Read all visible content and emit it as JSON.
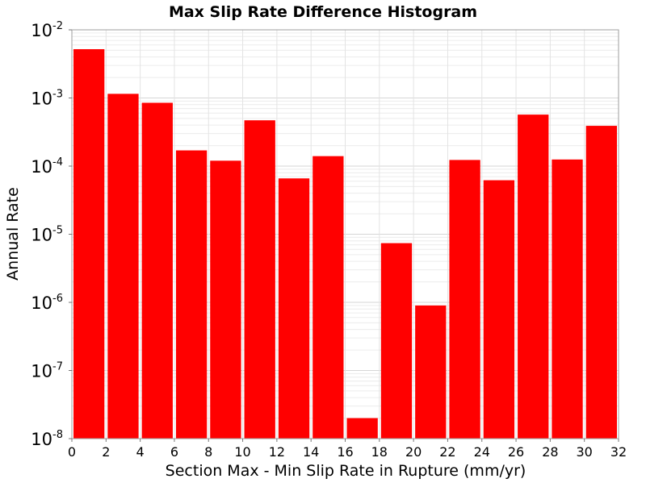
{
  "chart_data": {
    "type": "bar",
    "title": "Max Slip Rate Difference Histogram",
    "xlabel": "Section Max - Min Slip Rate in Rupture (mm/yr)",
    "ylabel": "Annual Rate",
    "xlim": [
      0,
      32
    ],
    "ylim": [
      1e-08,
      0.01
    ],
    "yscale": "log",
    "grid": true,
    "bar_color": "#ff0000",
    "x_ticks": [
      "0",
      "2",
      "4",
      "6",
      "8",
      "10",
      "12",
      "14",
      "16",
      "18",
      "20",
      "22",
      "24",
      "26",
      "28",
      "30",
      "32"
    ],
    "y_ticks": [
      {
        "base": "10",
        "exp": "-8"
      },
      {
        "base": "10",
        "exp": "-7"
      },
      {
        "base": "10",
        "exp": "-6"
      },
      {
        "base": "10",
        "exp": "-5"
      },
      {
        "base": "10",
        "exp": "-4"
      },
      {
        "base": "10",
        "exp": "-3"
      },
      {
        "base": "10",
        "exp": "-2"
      }
    ],
    "bins": [
      {
        "x0": 0,
        "x1": 2,
        "value": 0.0052
      },
      {
        "x0": 2,
        "x1": 4,
        "value": 0.00115
      },
      {
        "x0": 4,
        "x1": 6,
        "value": 0.00085
      },
      {
        "x0": 6,
        "x1": 8,
        "value": 0.00017
      },
      {
        "x0": 8,
        "x1": 10,
        "value": 0.00012
      },
      {
        "x0": 10,
        "x1": 12,
        "value": 0.00047
      },
      {
        "x0": 12,
        "x1": 14,
        "value": 6.6e-05
      },
      {
        "x0": 14,
        "x1": 16,
        "value": 0.00014
      },
      {
        "x0": 16,
        "x1": 18,
        "value": 2e-08
      },
      {
        "x0": 18,
        "x1": 20,
        "value": 7.4e-06
      },
      {
        "x0": 20,
        "x1": 22,
        "value": 9e-07
      },
      {
        "x0": 22,
        "x1": 24,
        "value": 0.000123
      },
      {
        "x0": 24,
        "x1": 26,
        "value": 6.2e-05
      },
      {
        "x0": 26,
        "x1": 28,
        "value": 0.00057
      },
      {
        "x0": 28,
        "x1": 30,
        "value": 0.000125
      },
      {
        "x0": 30,
        "x1": 32,
        "value": 0.00039
      }
    ]
  }
}
